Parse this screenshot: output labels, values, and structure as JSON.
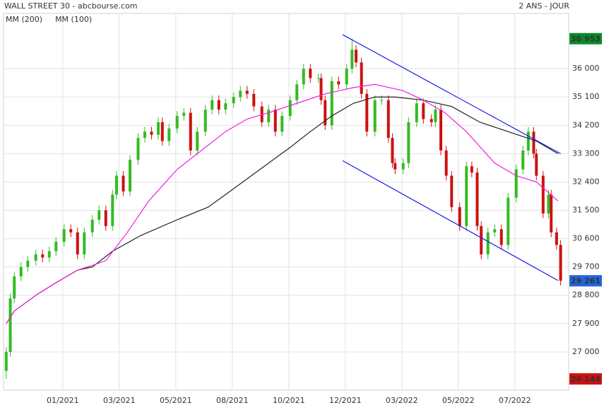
{
  "chart_data": {
    "type": "candlestick",
    "title": "WALL STREET 30 - abcbourse.com",
    "subtitle": "2 ANS - JOUR",
    "up_color": "#33bb22",
    "down_color": "#cc1111",
    "x": [
      2,
      5,
      8,
      13,
      18,
      24,
      29,
      34,
      39,
      45,
      50,
      55,
      60,
      66,
      71,
      76,
      81,
      84,
      89,
      94,
      100,
      105,
      110,
      115,
      118,
      123,
      129,
      134,
      139,
      144,
      150,
      155,
      160,
      165,
      171,
      176,
      181,
      186,
      192,
      197,
      202,
      207,
      213,
      218,
      223,
      228,
      234,
      236,
      239,
      244,
      249,
      255,
      259,
      262,
      266,
      270,
      276,
      281,
      286,
      289,
      291,
      297,
      301,
      307,
      312,
      318,
      321,
      325,
      329,
      333,
      339,
      344,
      348,
      352,
      355,
      360,
      365,
      370,
      375,
      381,
      386,
      390,
      394,
      396,
      401,
      405,
      407,
      411,
      414
    ],
    "open": [
      26400,
      27000,
      28700,
      29400,
      29700,
      29900,
      30100,
      30000,
      30200,
      30500,
      30900,
      30800,
      30100,
      30800,
      31200,
      31500,
      31000,
      32000,
      32600,
      32100,
      33100,
      33800,
      34000,
      33900,
      34300,
      33700,
      34100,
      34500,
      34600,
      33400,
      34000,
      34700,
      35000,
      34700,
      34900,
      35100,
      35300,
      35200,
      34800,
      34300,
      34700,
      34000,
      34500,
      35000,
      35500,
      36000,
      35700,
      35700,
      35000,
      34200,
      35600,
      35500,
      36000,
      36600,
      36200,
      35200,
      34000,
      35000,
      35000,
      33800,
      33000,
      32800,
      33000,
      34300,
      34900,
      34400,
      34300,
      34700,
      33400,
      32600,
      31600,
      31000,
      32900,
      32700,
      31000,
      30100,
      30800,
      30900,
      30400,
      31900,
      32800,
      33400,
      34000,
      33300,
      32600,
      31400,
      32000,
      30800,
      30400
    ],
    "high": [
      27150,
      28850,
      29550,
      29850,
      30050,
      30250,
      30250,
      30350,
      30650,
      31050,
      31050,
      30950,
      30950,
      31350,
      31650,
      31650,
      32150,
      32750,
      32750,
      33250,
      33950,
      34150,
      34150,
      34450,
      34450,
      34250,
      34650,
      34750,
      34750,
      34150,
      34850,
      35150,
      35150,
      35050,
      35250,
      35450,
      35450,
      35350,
      34950,
      34850,
      34850,
      34650,
      35150,
      35650,
      36150,
      36150,
      35850,
      35850,
      35150,
      35750,
      35750,
      36150,
      36953,
      36750,
      36350,
      35350,
      35150,
      35150,
      35150,
      33950,
      33150,
      33150,
      34450,
      35050,
      35050,
      34550,
      34850,
      34850,
      33550,
      32750,
      31750,
      33050,
      33050,
      32850,
      31150,
      30950,
      31050,
      31050,
      32050,
      32950,
      33550,
      34150,
      34150,
      33450,
      32750,
      32150,
      32150,
      30950,
      30550
    ],
    "low": [
      26144,
      26850,
      28550,
      29250,
      29550,
      29750,
      29850,
      29850,
      30050,
      30350,
      30650,
      29950,
      29950,
      30650,
      31050,
      30850,
      30850,
      31850,
      31950,
      31950,
      32950,
      33650,
      33750,
      33750,
      33550,
      33550,
      33950,
      34350,
      33250,
      33250,
      33850,
      34550,
      34550,
      34550,
      34750,
      34950,
      35050,
      34650,
      34150,
      34150,
      33850,
      33850,
      34350,
      34850,
      35350,
      35550,
      35550,
      34850,
      34050,
      34050,
      35350,
      35350,
      35850,
      36050,
      35050,
      33850,
      33850,
      34850,
      33650,
      32850,
      32650,
      32650,
      32850,
      34150,
      34250,
      34150,
      34150,
      33250,
      32450,
      31450,
      30850,
      30850,
      32550,
      30850,
      29950,
      29950,
      30650,
      30250,
      30250,
      31750,
      32650,
      33250,
      33150,
      32450,
      31250,
      31250,
      30650,
      30250,
      29111
    ],
    "close": [
      27000,
      28700,
      29400,
      29700,
      29900,
      30100,
      30000,
      30200,
      30500,
      30900,
      30800,
      30100,
      30800,
      31200,
      31500,
      31000,
      32000,
      32600,
      32100,
      33100,
      33800,
      34000,
      33900,
      34300,
      33700,
      34100,
      34500,
      34600,
      33400,
      34000,
      34700,
      35000,
      34700,
      34900,
      35100,
      35300,
      35200,
      34800,
      34300,
      34700,
      34000,
      34500,
      35000,
      35500,
      36000,
      35700,
      35700,
      35000,
      34200,
      35600,
      35500,
      36000,
      36600,
      36200,
      35200,
      34000,
      35000,
      35000,
      33800,
      33000,
      32800,
      33000,
      34300,
      34900,
      34400,
      34300,
      34700,
      33400,
      32600,
      31600,
      31000,
      32900,
      32700,
      31000,
      30100,
      30800,
      30900,
      30400,
      31900,
      32800,
      33400,
      34000,
      33300,
      32600,
      31400,
      32000,
      30800,
      30400,
      29261
    ],
    "series": [
      {
        "name": "MM (200)",
        "color": "#222222",
        "x": [
          2,
          8,
          24,
          39,
          55,
          66,
          81,
          102,
          129,
          152,
          165,
          181,
          197,
          213,
          228,
          244,
          260,
          276,
          291,
          312,
          333,
          354,
          375,
          396,
          412
        ],
        "values": [
          27900,
          28300,
          28800,
          29200,
          29600,
          29700,
          30200,
          30700,
          31200,
          31600,
          32000,
          32500,
          33000,
          33500,
          34000,
          34500,
          34900,
          35100,
          35100,
          35000,
          34800,
          34300,
          34000,
          33700,
          33300
        ]
      },
      {
        "name": "MM (100)",
        "color": "#ee22dd",
        "x": [
          2,
          8,
          24,
          39,
          55,
          66,
          76,
          92,
          108,
          129,
          144,
          165,
          181,
          197,
          218,
          239,
          260,
          276,
          297,
          312,
          328,
          344,
          365,
          381,
          396,
          412
        ],
        "values": [
          27900,
          28300,
          28800,
          29200,
          29600,
          29750,
          29900,
          30800,
          31800,
          32800,
          33300,
          34000,
          34400,
          34600,
          34900,
          35200,
          35400,
          35500,
          35300,
          35000,
          34600,
          34000,
          33000,
          32600,
          32400,
          31800
        ]
      }
    ],
    "channel_color": "#1a1aee",
    "channels": [
      {
        "x": [
          252,
          414
        ],
        "y": [
          37080,
          33300
        ]
      },
      {
        "x": [
          252,
          412
        ],
        "y": [
          33075,
          29272
        ]
      }
    ],
    "price_tags": [
      {
        "value": 36953,
        "label": "36 953",
        "color": "#0a8a2a"
      },
      {
        "value": 29261,
        "label": "29 261",
        "color": "#2266dd"
      },
      {
        "value": 26144,
        "label": "26 144",
        "color": "#cc1111"
      }
    ],
    "xlim": [
      0,
      420
    ],
    "ylim": [
      25785,
      37755
    ],
    "xticks": [
      {
        "value": 44,
        "label": "01/2021"
      },
      {
        "value": 86,
        "label": "03/2021"
      },
      {
        "value": 128,
        "label": "05/2021"
      },
      {
        "value": 170,
        "label": "08/2021"
      },
      {
        "value": 212,
        "label": "10/2021"
      },
      {
        "value": 254,
        "label": "12/2021"
      },
      {
        "value": 296,
        "label": "03/2022"
      },
      {
        "value": 338,
        "label": "05/2022"
      },
      {
        "value": 380,
        "label": "07/2022"
      }
    ],
    "yticks": [
      {
        "value": 27000,
        "label": "27 000"
      },
      {
        "value": 27900,
        "label": "27 900"
      },
      {
        "value": 28800,
        "label": "28 800"
      },
      {
        "value": 29700,
        "label": "29 700"
      },
      {
        "value": 30600,
        "label": "30 600"
      },
      {
        "value": 31500,
        "label": "31 500"
      },
      {
        "value": 32400,
        "label": "32 400"
      },
      {
        "value": 33300,
        "label": "33 300"
      },
      {
        "value": 34200,
        "label": "34 200"
      },
      {
        "value": 35100,
        "label": "35 100"
      },
      {
        "value": 36000,
        "label": "36 000"
      }
    ],
    "grid": true
  }
}
